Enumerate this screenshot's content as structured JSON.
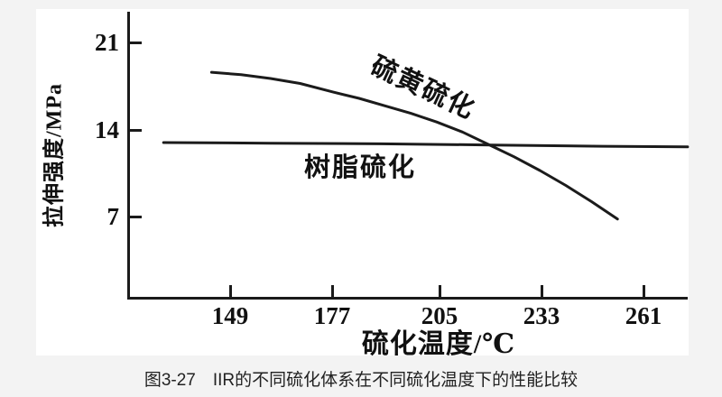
{
  "figure": {
    "caption": "图3-27　IIR的不同硫化体系在不同硫化温度下的性能比较"
  },
  "chart_data": {
    "type": "line",
    "title": "",
    "xlabel": "硫化温度/℃",
    "ylabel": "拉伸强度/MPa",
    "x_ticks": [
      "149",
      "177",
      "205",
      "233",
      "261"
    ],
    "y_ticks": [
      "21",
      "14",
      "7"
    ],
    "xlim": [
      121,
      274
    ],
    "ylim": [
      0,
      23.4
    ],
    "grid": false,
    "legend_position": "inline curve labels",
    "line_color": "#1b1b1b",
    "series": [
      {
        "name": "硫黄硫化",
        "x": [
          144,
          152,
          160,
          168,
          177,
          184,
          191,
          198,
          205,
          212,
          219,
          226,
          233,
          240,
          247,
          254
        ],
        "y": [
          18.6,
          18.4,
          18.1,
          17.7,
          17.0,
          16.5,
          15.9,
          15.3,
          14.6,
          13.8,
          12.8,
          11.8,
          10.7,
          9.5,
          8.2,
          6.8
        ]
      },
      {
        "name": "树脂硫化",
        "x": [
          131,
          160,
          190,
          220,
          250,
          273
        ],
        "y": [
          12.95,
          12.9,
          12.85,
          12.75,
          12.65,
          12.6
        ]
      }
    ]
  }
}
